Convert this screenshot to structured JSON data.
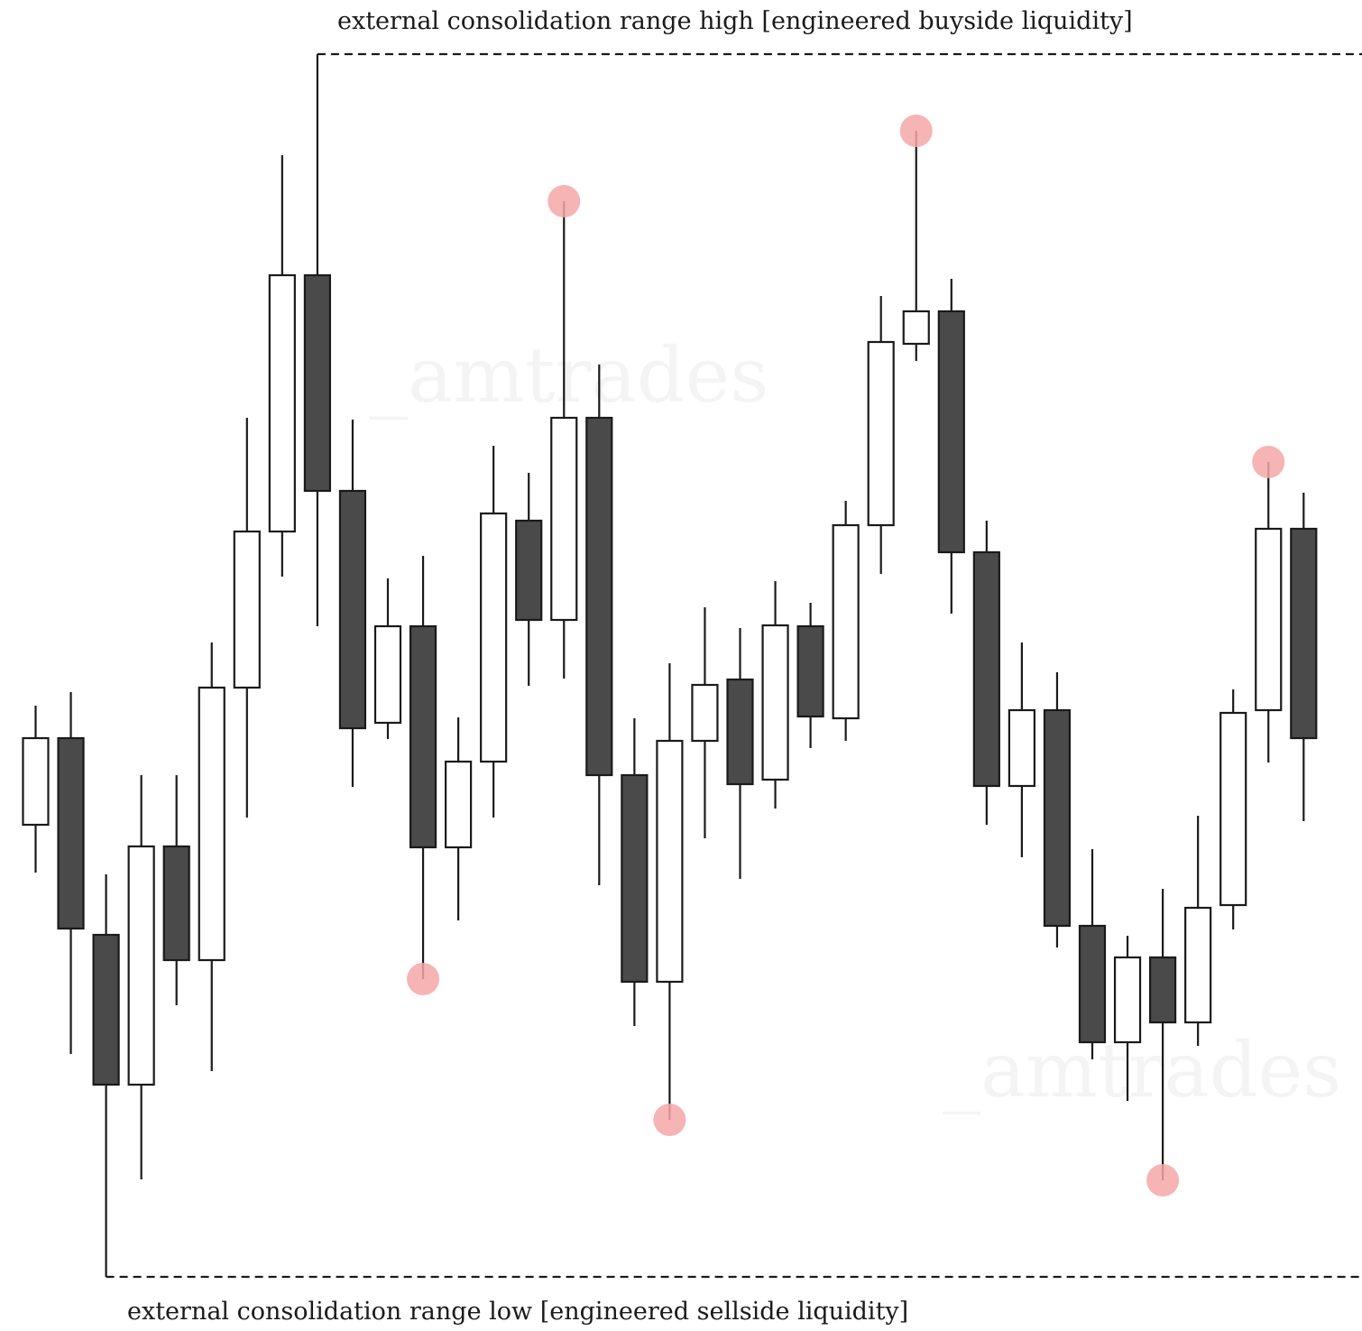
{
  "chart_data": {
    "type": "candlestick",
    "title": "",
    "xlabel": "",
    "ylabel": "",
    "ylim": [
      0,
      1355
    ],
    "colors": {
      "bullish_body": "#ffffff",
      "bearish_body": "#4a4a4a",
      "outline": "#1a1a1a",
      "marker": "#f4a7a7",
      "watermark": "#cfcfcf"
    },
    "candles": [
      {
        "open": 501,
        "high": 633,
        "low": 448,
        "close": 597
      },
      {
        "open": 597,
        "high": 648,
        "low": 247,
        "close": 386
      },
      {
        "open": 379,
        "high": 446,
        "low": 0,
        "close": 213
      },
      {
        "open": 213,
        "high": 556,
        "low": 108,
        "close": 477
      },
      {
        "open": 477,
        "high": 556,
        "low": 301,
        "close": 351
      },
      {
        "open": 351,
        "high": 703,
        "low": 228,
        "close": 653
      },
      {
        "open": 653,
        "high": 952,
        "low": 509,
        "close": 826
      },
      {
        "open": 826,
        "high": 1243,
        "low": 776,
        "close": 1110
      },
      {
        "open": 1110,
        "high": 1355,
        "low": 721,
        "close": 871
      },
      {
        "open": 871,
        "high": 950,
        "low": 543,
        "close": 608
      },
      {
        "open": 614,
        "high": 774,
        "low": 596,
        "close": 721
      },
      {
        "open": 721,
        "high": 799,
        "low": 330,
        "close": 476
      },
      {
        "open": 476,
        "high": 620,
        "low": 395,
        "close": 571
      },
      {
        "open": 571,
        "high": 921,
        "low": 509,
        "close": 846
      },
      {
        "open": 838,
        "high": 891,
        "low": 655,
        "close": 728
      },
      {
        "open": 728,
        "high": 1192,
        "low": 663,
        "close": 952
      },
      {
        "open": 952,
        "high": 1011,
        "low": 434,
        "close": 556
      },
      {
        "open": 556,
        "high": 619,
        "low": 278,
        "close": 327
      },
      {
        "open": 327,
        "high": 680,
        "low": 174,
        "close": 594
      },
      {
        "open": 594,
        "high": 742,
        "low": 486,
        "close": 656
      },
      {
        "open": 662,
        "high": 719,
        "low": 441,
        "close": 546
      },
      {
        "open": 551,
        "high": 771,
        "low": 519,
        "close": 722
      },
      {
        "open": 721,
        "high": 747,
        "low": 586,
        "close": 621
      },
      {
        "open": 619,
        "high": 860,
        "low": 594,
        "close": 833
      },
      {
        "open": 833,
        "high": 1087,
        "low": 779,
        "close": 1036
      },
      {
        "open": 1034,
        "high": 1270,
        "low": 1015,
        "close": 1070
      },
      {
        "open": 1070,
        "high": 1106,
        "low": 735,
        "close": 803
      },
      {
        "open": 803,
        "high": 838,
        "low": 501,
        "close": 544
      },
      {
        "open": 544,
        "high": 703,
        "low": 465,
        "close": 628
      },
      {
        "open": 628,
        "high": 670,
        "low": 365,
        "close": 389
      },
      {
        "open": 389,
        "high": 474,
        "low": 241,
        "close": 260
      },
      {
        "open": 260,
        "high": 378,
        "low": 195,
        "close": 354
      },
      {
        "open": 354,
        "high": 430,
        "low": 107,
        "close": 282
      },
      {
        "open": 282,
        "high": 511,
        "low": 256,
        "close": 409
      },
      {
        "open": 412,
        "high": 651,
        "low": 385,
        "close": 625
      },
      {
        "open": 628,
        "high": 903,
        "low": 570,
        "close": 829
      },
      {
        "open": 829,
        "high": 869,
        "low": 505,
        "close": 597
      }
    ],
    "liquidity_markers": [
      {
        "candle": 11,
        "price": 330
      },
      {
        "candle": 15,
        "price": 1192
      },
      {
        "candle": 18,
        "price": 174
      },
      {
        "candle": 25,
        "price": 1270
      },
      {
        "candle": 32,
        "price": 107
      },
      {
        "candle": 35,
        "price": 903
      }
    ],
    "annotations": {
      "range_high": {
        "text": "external consolidation range high [engineered buyside liquidity]",
        "price": 1355,
        "anchor_candle": 8
      },
      "range_low": {
        "text": "external consolidation range low [engineered sellside liquidity]",
        "price": 0,
        "anchor_candle": 2
      }
    },
    "watermark": "_amtrades"
  }
}
